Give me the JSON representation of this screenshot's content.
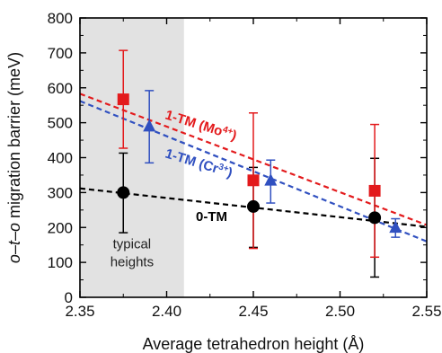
{
  "chart_data": {
    "type": "scatter",
    "xlabel": "Average tetrahedron height (Å)",
    "ylabel_parts": [
      "o",
      "–",
      "t",
      "–",
      "o",
      " migration barrier (meV)"
    ],
    "xlim": [
      2.35,
      2.55
    ],
    "ylim": [
      0,
      800
    ],
    "xticks": [
      "2.35",
      "2.40",
      "2.45",
      "2.50",
      "2.55"
    ],
    "yticks": [
      "0",
      "100",
      "200",
      "300",
      "400",
      "500",
      "600",
      "700",
      "800"
    ],
    "shaded_region": {
      "x": [
        2.35,
        2.41
      ],
      "label_line1": "typical",
      "label_line2": "heights",
      "color": "#e2e2e2"
    },
    "grid": false,
    "series": [
      {
        "name": "0-TM",
        "marker": "circle",
        "color": "#000000",
        "points": [
          {
            "x": 2.375,
            "y": 300,
            "lo": 185,
            "hi": 413
          },
          {
            "x": 2.45,
            "y": 260,
            "lo": 143,
            "hi": 372
          },
          {
            "x": 2.52,
            "y": 228,
            "lo": 58,
            "hi": 398
          }
        ],
        "trend": [
          [
            2.35,
            312
          ],
          [
            2.55,
            202
          ]
        ]
      },
      {
        "name": "1-TM (Mo4+)",
        "marker": "square",
        "color": "#e31a1c",
        "points": [
          {
            "x": 2.375,
            "y": 567,
            "lo": 427,
            "hi": 707
          },
          {
            "x": 2.45,
            "y": 335,
            "lo": 140,
            "hi": 528
          },
          {
            "x": 2.52,
            "y": 305,
            "lo": 115,
            "hi": 495
          }
        ],
        "trend": [
          [
            2.35,
            583
          ],
          [
            2.55,
            207
          ]
        ]
      },
      {
        "name": "1-TM (Cr3+)",
        "marker": "triangle",
        "color": "#3050c0",
        "points": [
          {
            "x": 2.39,
            "y": 490,
            "lo": 385,
            "hi": 592
          },
          {
            "x": 2.46,
            "y": 335,
            "lo": 270,
            "hi": 393
          },
          {
            "x": 2.532,
            "y": 200,
            "lo": 172,
            "hi": 225
          }
        ],
        "trend": [
          [
            2.35,
            562
          ],
          [
            2.55,
            160
          ]
        ]
      }
    ],
    "annotations": [
      {
        "text": "1-TM (Mo",
        "sup": "4+",
        "close": ")",
        "color": "#e31a1c"
      },
      {
        "text": "1-TM (Cr",
        "sup": "3+",
        "close": ")",
        "color": "#3050c0"
      },
      {
        "text": "0-TM",
        "sup": "",
        "close": "",
        "color": "#000000"
      }
    ]
  }
}
